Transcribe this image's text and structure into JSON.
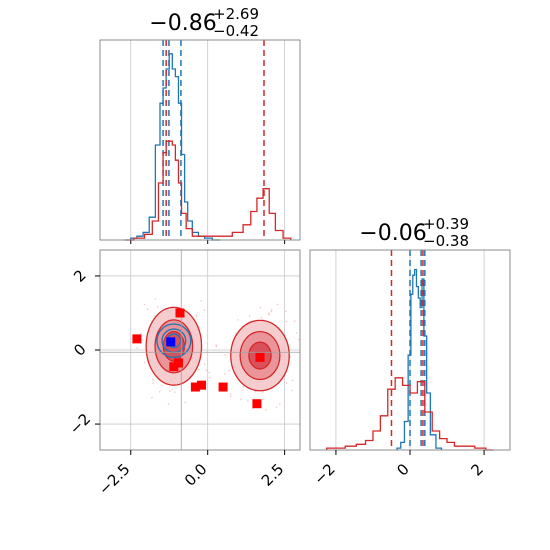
{
  "colors": {
    "blue": "#1f77b4",
    "red": "#d62728",
    "grid": "#c8c8c8",
    "frame": "#808080"
  },
  "chart_data": [
    {
      "type": "histogram",
      "panel": "marginal-param-1",
      "title": {
        "value": "−0.86",
        "plus": "+2.69",
        "minus": "−0.42"
      },
      "xlim": [
        -3.5,
        3.0
      ],
      "grid": true,
      "series": [
        {
          "color": "#1f77b4",
          "bin_centers": [
            -2.4,
            -2.2,
            -2.0,
            -1.8,
            -1.6,
            -1.5,
            -1.4,
            -1.3,
            -1.2,
            -1.1,
            -1.0,
            -0.9,
            -0.8,
            -0.7,
            -0.6,
            -0.4,
            -0.2,
            0.0,
            0.3
          ],
          "counts": [
            0.01,
            0.02,
            0.04,
            0.12,
            0.5,
            0.72,
            0.8,
            0.9,
            0.98,
            0.9,
            0.86,
            0.72,
            0.45,
            0.2,
            0.1,
            0.04,
            0.02,
            0.01,
            0.0
          ],
          "quantile_lines": [
            -1.45,
            -1.26,
            -0.87
          ]
        },
        {
          "color": "#d62728",
          "bin_centers": [
            -2.6,
            -2.2,
            -1.9,
            -1.7,
            -1.5,
            -1.4,
            -1.3,
            -1.2,
            -1.1,
            -1.0,
            -0.9,
            -0.8,
            -0.6,
            -0.4,
            -0.1,
            0.2,
            0.6,
            1.0,
            1.3,
            1.5,
            1.7,
            1.9,
            2.1,
            2.3,
            2.6
          ],
          "counts": [
            0.0,
            0.01,
            0.03,
            0.1,
            0.3,
            0.46,
            0.52,
            0.52,
            0.5,
            0.42,
            0.3,
            0.14,
            0.06,
            0.02,
            0.02,
            0.02,
            0.02,
            0.04,
            0.08,
            0.15,
            0.22,
            0.27,
            0.14,
            0.05,
            0.01
          ],
          "quantile_lines": [
            -1.35,
            1.83
          ]
        }
      ]
    },
    {
      "type": "contour",
      "panel": "joint-2d",
      "xlim": [
        -3.5,
        3.0
      ],
      "ylim": [
        -2.7,
        2.7
      ],
      "grid": true,
      "x_ticks": [
        "−2.5",
        "0.0",
        "2.5"
      ],
      "y_ticks": [
        "2",
        "0",
        "−2"
      ],
      "x_tick_values": [
        -2.5,
        0.0,
        2.5
      ],
      "y_tick_values": [
        2,
        0,
        -2
      ],
      "crosshair": {
        "x": -0.86,
        "y": -0.06
      },
      "red_modes": [
        {
          "cx": -1.1,
          "cy": 0.1,
          "rx": 0.9,
          "ry": 1.05
        },
        {
          "cx": 1.7,
          "cy": -0.15,
          "rx": 0.95,
          "ry": 0.95
        }
      ],
      "blue_mode": {
        "cx": -1.1,
        "cy": 0.25,
        "rx": 0.55,
        "ry": 0.45
      },
      "red_points": [
        [
          -2.3,
          0.3
        ],
        [
          -0.9,
          1.0
        ],
        [
          -1.1,
          -0.45
        ],
        [
          -0.95,
          -0.35
        ],
        [
          -0.4,
          -1.0
        ],
        [
          -0.2,
          -0.95
        ],
        [
          0.5,
          -1.0
        ],
        [
          1.7,
          -0.2
        ],
        [
          1.6,
          -1.45
        ]
      ],
      "blue_points": [
        [
          -1.2,
          0.22
        ]
      ]
    },
    {
      "type": "histogram",
      "panel": "marginal-param-2",
      "title": {
        "value": "−0.06",
        "plus": "+0.39",
        "minus": "−0.38"
      },
      "xlim": [
        -2.7,
        2.7
      ],
      "grid": true,
      "x_ticks": [
        "−2",
        "0",
        "2"
      ],
      "x_tick_values": [
        -2,
        0,
        2
      ],
      "series": [
        {
          "color": "#1f77b4",
          "bin_centers": [
            -0.3,
            -0.2,
            -0.1,
            0.0,
            0.05,
            0.1,
            0.15,
            0.2,
            0.25,
            0.3,
            0.35,
            0.4,
            0.5,
            0.6,
            0.8
          ],
          "counts": [
            0.01,
            0.04,
            0.15,
            0.5,
            0.82,
            0.92,
            0.95,
            0.86,
            0.8,
            0.75,
            0.9,
            0.6,
            0.3,
            0.08,
            0.01
          ],
          "quantile_lines": [
            0.0,
            0.3,
            0.4
          ]
        },
        {
          "color": "#d62728",
          "bin_centers": [
            -2.2,
            -1.9,
            -1.6,
            -1.3,
            -1.1,
            -0.9,
            -0.7,
            -0.5,
            -0.3,
            -0.1,
            0.1,
            0.3,
            0.5,
            0.7,
            0.9,
            1.1,
            1.3,
            1.6,
            1.9,
            2.2
          ],
          "counts": [
            0.01,
            0.01,
            0.02,
            0.03,
            0.05,
            0.1,
            0.18,
            0.32,
            0.38,
            0.34,
            0.3,
            0.36,
            0.2,
            0.1,
            0.06,
            0.04,
            0.02,
            0.02,
            0.01,
            0.0
          ],
          "quantile_lines": [
            -0.5,
            0.35
          ]
        }
      ]
    }
  ]
}
